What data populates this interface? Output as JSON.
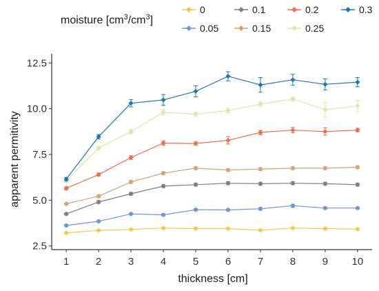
{
  "chart_data": {
    "type": "line",
    "xlabel": "thickness [cm]",
    "ylabel": "apparent permitivity",
    "x": [
      1,
      2,
      3,
      4,
      5,
      6,
      7,
      8,
      9,
      10
    ],
    "xticks": [
      "1",
      "2",
      "3",
      "4",
      "5",
      "6",
      "7",
      "8",
      "9",
      "10"
    ],
    "yticks": [
      "2.5",
      "5.0",
      "7.5",
      "10.0",
      "12.5"
    ],
    "ytick_values": [
      2.5,
      5.0,
      7.5,
      10.0,
      12.5
    ],
    "xlim": [
      0.55,
      10.45
    ],
    "ylim": [
      2.3,
      13.0
    ],
    "grid": false,
    "error_bars": true,
    "legend": {
      "position": "top",
      "title_main": "moisture [cm",
      "title_sup1": "3",
      "title_mid": "/cm",
      "title_sup2": "3",
      "title_end": "]"
    },
    "series": [
      {
        "name": "0",
        "color": "#F2C94C",
        "values": [
          3.22,
          3.35,
          3.4,
          3.48,
          3.45,
          3.45,
          3.36,
          3.48,
          3.45,
          3.42
        ],
        "errors": [
          0.05,
          0.05,
          0.05,
          0.05,
          0.05,
          0.05,
          0.05,
          0.05,
          0.05,
          0.05
        ]
      },
      {
        "name": "0.05",
        "color": "#6F95D8",
        "values": [
          3.62,
          3.85,
          4.25,
          4.2,
          4.48,
          4.47,
          4.53,
          4.7,
          4.57,
          4.57
        ],
        "errors": [
          0.06,
          0.06,
          0.06,
          0.06,
          0.06,
          0.06,
          0.08,
          0.08,
          0.06,
          0.06
        ]
      },
      {
        "name": "0.1",
        "color": "#7F7F7F",
        "values": [
          4.25,
          4.9,
          5.35,
          5.77,
          5.85,
          5.93,
          5.9,
          5.93,
          5.9,
          5.85
        ],
        "errors": [
          0.06,
          0.08,
          0.08,
          0.08,
          0.08,
          0.08,
          0.08,
          0.08,
          0.08,
          0.08
        ]
      },
      {
        "name": "0.15",
        "color": "#D4A373",
        "values": [
          4.8,
          5.22,
          6.0,
          6.48,
          6.75,
          6.65,
          6.7,
          6.75,
          6.75,
          6.8
        ],
        "errors": [
          0.06,
          0.08,
          0.08,
          0.08,
          0.08,
          0.08,
          0.08,
          0.08,
          0.08,
          0.08
        ]
      },
      {
        "name": "0.2",
        "color": "#F26B4D",
        "values": [
          5.65,
          6.4,
          7.33,
          8.12,
          8.1,
          8.27,
          8.7,
          8.83,
          8.75,
          8.83
        ],
        "errors": [
          0.08,
          0.08,
          0.1,
          0.12,
          0.1,
          0.2,
          0.12,
          0.15,
          0.2,
          0.1
        ]
      },
      {
        "name": "0.25",
        "color": "#D9E7A8",
        "values": [
          6.05,
          7.85,
          8.75,
          9.8,
          9.7,
          9.9,
          10.25,
          10.53,
          9.95,
          10.15
        ],
        "errors": [
          0.08,
          0.1,
          0.12,
          0.15,
          0.1,
          0.12,
          0.12,
          0.1,
          0.4,
          0.3
        ]
      },
      {
        "name": "0.3",
        "color": "#1F78B4",
        "values": [
          6.15,
          8.47,
          10.3,
          10.48,
          10.95,
          11.77,
          11.3,
          11.58,
          11.33,
          11.45
        ],
        "errors": [
          0.1,
          0.12,
          0.2,
          0.3,
          0.3,
          0.25,
          0.4,
          0.3,
          0.3,
          0.25
        ]
      }
    ]
  }
}
